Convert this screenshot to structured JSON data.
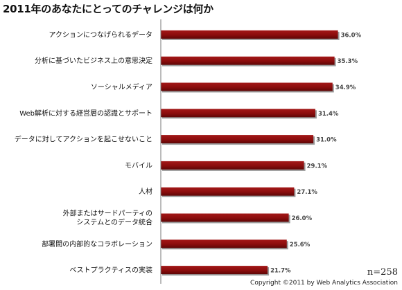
{
  "chart_data": {
    "type": "bar",
    "orientation": "horizontal",
    "title": "2011年のあなたにとってのチャレンジは何か",
    "categories": [
      "アクションにつなげられるデータ",
      "分析に基づいたビジネス上の意思決定",
      "ソーシャルメディア",
      "Web解析に対する経営層の認識とサポート",
      "データに対してアクションを起こせないこと",
      "モバイル",
      "人材",
      "外部またはサードパーティの\nシステムとのデータ統合",
      "部署間の内部的なコラボレーション",
      "ベストプラクティスの実装"
    ],
    "values": [
      36.0,
      35.3,
      34.9,
      31.4,
      31.0,
      29.1,
      27.1,
      26.0,
      25.6,
      21.7
    ],
    "value_labels": [
      "36.0%",
      "35.3%",
      "34.9%",
      "31.4%",
      "31.0%",
      "29.1%",
      "27.1%",
      "26.0%",
      "25.6%",
      "21.7%"
    ],
    "xlim": [
      0,
      40
    ],
    "grid": false,
    "legend": "none",
    "bar_color": "#8b0d0d"
  },
  "footer": {
    "sample_size": "n=258",
    "copyright": "Copyright ©2011 by Web Analytics Association"
  }
}
